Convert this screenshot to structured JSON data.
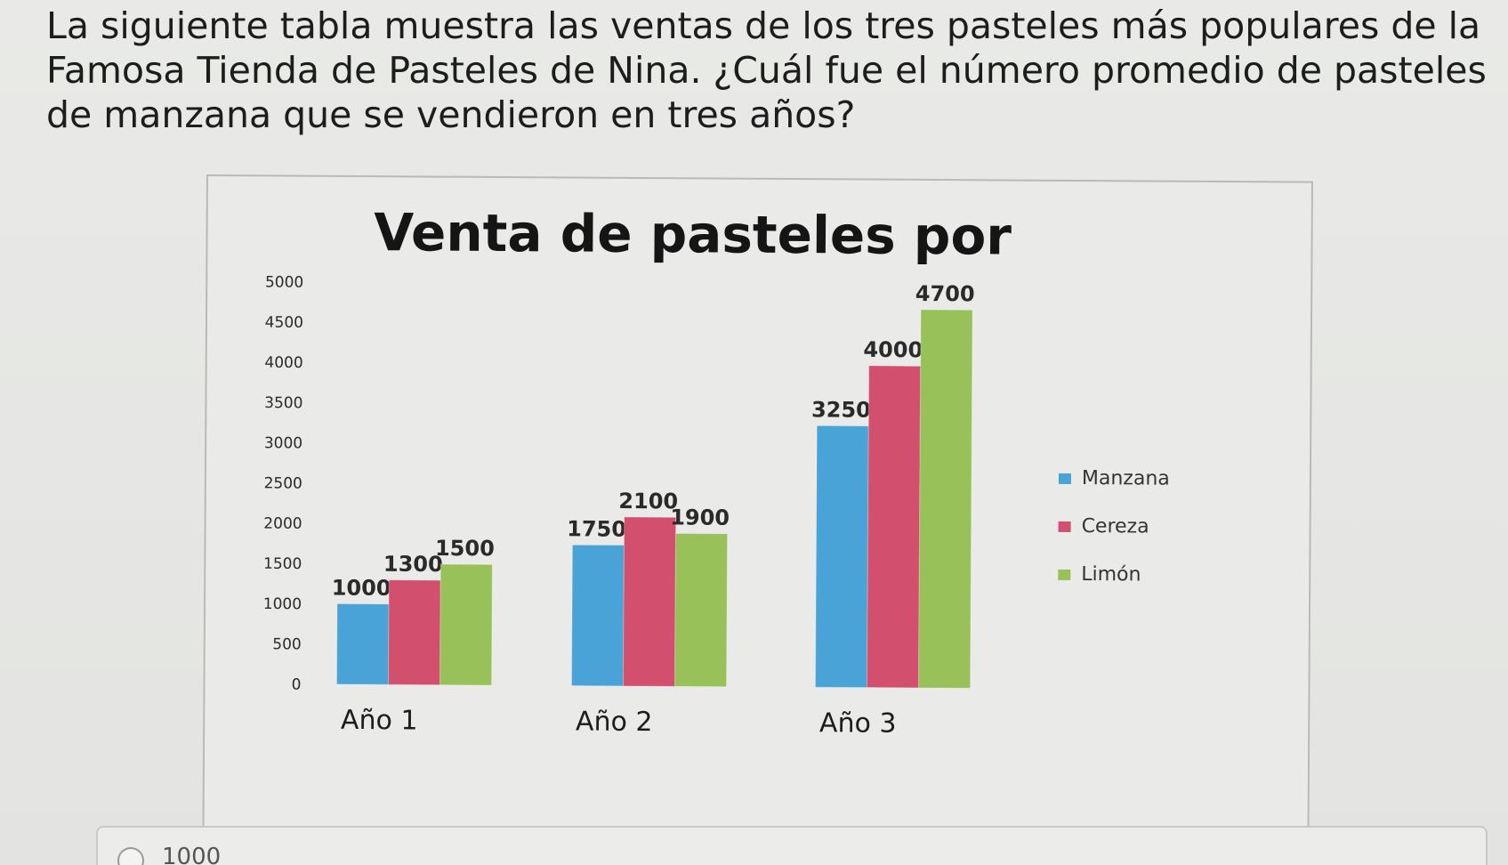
{
  "question": {
    "text": "La siguiente tabla muestra las ventas de los tres pasteles más populares de la Famosa Tienda de Pasteles de Nina. ¿Cuál fue el número promedio de pasteles de manzana que se vendieron en tres años?"
  },
  "answer_option": {
    "label": "1000"
  },
  "chart_data": {
    "type": "bar",
    "title": "Venta de pasteles por",
    "categories": [
      "Año 1",
      "Año 2",
      "Año 3"
    ],
    "series": [
      {
        "name": "Manzana",
        "values": [
          1000,
          1750,
          3250
        ],
        "color": "#4aa3d6"
      },
      {
        "name": "Cereza",
        "values": [
          1300,
          2100,
          4000
        ],
        "color": "#d2506e"
      },
      {
        "name": "Limón",
        "values": [
          1500,
          1900,
          4700
        ],
        "color": "#98c15a"
      }
    ],
    "y_ticks": [
      "0",
      "500",
      "1000",
      "1500",
      "2000",
      "2500",
      "3000",
      "3500",
      "4000",
      "4500",
      "5000"
    ],
    "ylim": [
      0,
      5000
    ],
    "legend": "right",
    "grid": false
  }
}
